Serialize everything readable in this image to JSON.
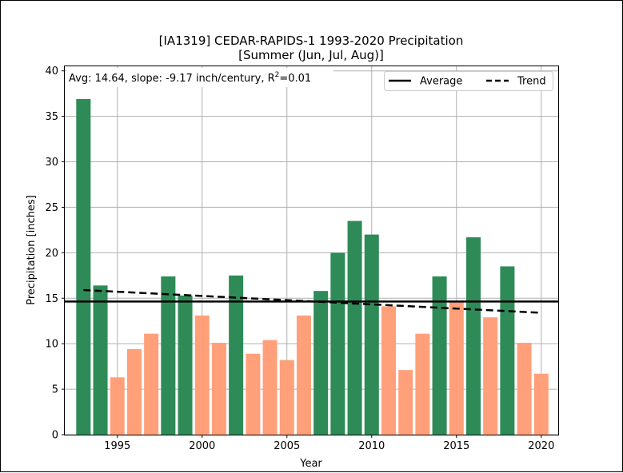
{
  "chart_data": {
    "type": "bar",
    "title": "[IA1319] CEDAR-RAPIDS-1 1993-2020 Precipitation",
    "subtitle": "[Summer (Jun, Jul, Aug)]",
    "xlabel": "Year",
    "ylabel": "Precipitation [inches]",
    "annotation": {
      "prefix": "Avg: 14.64, slope: -9.17 inch/century, R",
      "sup": "2",
      "suffix": "=0.01"
    },
    "years": [
      1993,
      1994,
      1995,
      1996,
      1997,
      1998,
      1999,
      2000,
      2001,
      2002,
      2003,
      2004,
      2005,
      2006,
      2007,
      2008,
      2009,
      2010,
      2011,
      2012,
      2013,
      2014,
      2015,
      2016,
      2017,
      2018,
      2019,
      2020
    ],
    "values": [
      36.9,
      16.4,
      6.3,
      9.4,
      11.1,
      17.4,
      15.3,
      13.1,
      10.1,
      17.5,
      8.9,
      10.4,
      8.2,
      13.1,
      15.8,
      20.0,
      23.5,
      22.0,
      14.1,
      7.1,
      11.1,
      17.4,
      14.6,
      21.7,
      12.9,
      18.5,
      10.1,
      6.7
    ],
    "average": 14.64,
    "trend": {
      "start_year": 1993,
      "start_value": 15.9,
      "end_year": 2020,
      "end_value": 13.4
    },
    "xlim": [
      1991.9,
      2021.0
    ],
    "ylim": [
      0,
      40.5
    ],
    "xticks": [
      1995,
      2000,
      2005,
      2010,
      2015,
      2020
    ],
    "yticks": [
      0,
      5,
      10,
      15,
      20,
      25,
      30,
      35,
      40
    ],
    "colors": {
      "above": "#2e8b57",
      "below": "#ffa07a",
      "average": "#000000",
      "trend": "#000000",
      "grid": "#b0b0b0"
    },
    "legend": {
      "placement": "top-right",
      "entries": [
        "Average",
        "Trend"
      ]
    },
    "grid": true
  }
}
